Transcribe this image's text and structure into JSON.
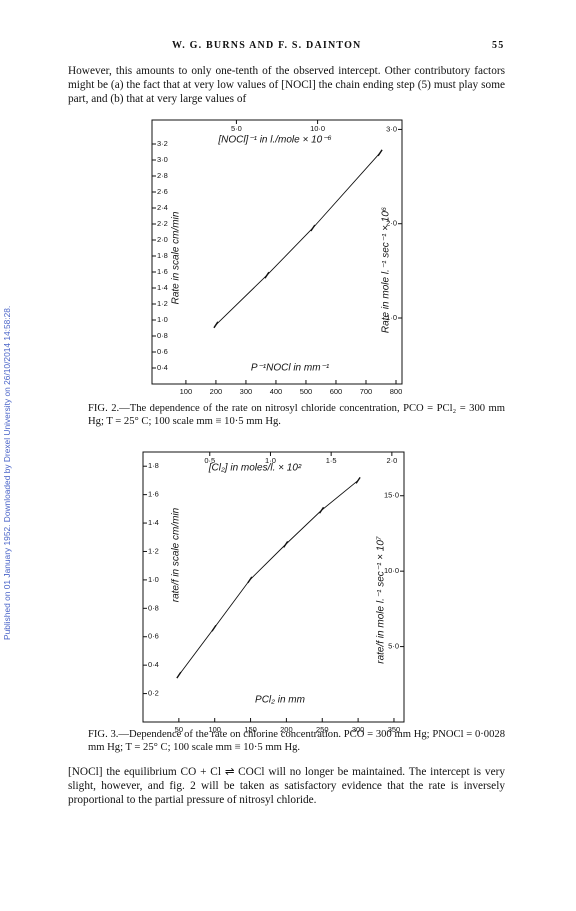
{
  "header": {
    "authors": "W. G. BURNS AND F. S. DAINTON",
    "page": "55"
  },
  "side_note": "Published on 01 January 1952. Downloaded by Drexel University on 26/10/2014 14:58:28.",
  "paragraphs": [
    "However, this amounts to only one-tenth of the observed intercept. Other contributory factors might be (a) the fact that at very low values of [NOCl] the chain ending step (5) must play some part, and (b) that at very large values of",
    "[NOCl] the equilibrium CO + Cl ⇌ COCl will no longer be maintained. The intercept is very slight, however, and fig. 2 will be taken as satisfactory evidence that the rate is inversely proportional to the partial pressure of nitrosyl chloride."
  ],
  "figures": [
    {
      "caption": "FIG. 2.—The dependence of the rate on nitrosyl chloride concentration, PCO = PCl₂ = 300 mm Hg; T = 25° C; 100 scale mm ≡ 10·5 mm Hg.",
      "x_axis": {
        "label": "P⁻¹NOCl in mm⁻¹",
        "lim": [
          -13,
          820
        ],
        "ticks": [
          100,
          200,
          300,
          400,
          500,
          600,
          700,
          800
        ]
      },
      "y_axis": {
        "label": "Rate in scale cm/min",
        "lim": [
          0.2,
          3.5
        ],
        "ticks": [
          {
            "value": 3.2,
            "label": "3·2"
          },
          {
            "value": 3.0,
            "label": "3·0"
          },
          {
            "value": 2.8,
            "label": "2·8"
          },
          {
            "value": 2.6,
            "label": "2·6"
          },
          {
            "value": 2.4,
            "label": "2·4"
          },
          {
            "value": 2.2,
            "label": "2·2"
          },
          {
            "value": 2.0,
            "label": "2·0"
          },
          {
            "value": 1.8,
            "label": "1·8"
          },
          {
            "value": 1.6,
            "label": "1·6"
          },
          {
            "value": 1.4,
            "label": "1·4"
          },
          {
            "value": 1.2,
            "label": "1·2"
          },
          {
            "value": 1.0,
            "label": "1·0"
          },
          {
            "value": 0.8,
            "label": "0·8"
          },
          {
            "value": 0.6,
            "label": "0·6"
          },
          {
            "value": 0.4,
            "label": "0·4"
          }
        ]
      },
      "x2_axis": {
        "label": "[NOCl]⁻¹ in l./mole × 10⁻⁶",
        "lim": [
          -0.2,
          15.2
        ],
        "ticks": [
          {
            "value": 5.0,
            "label": "5·0"
          },
          {
            "value": 10.0,
            "label": "10·0"
          }
        ]
      },
      "y2_axis": {
        "label": "Rate in mole l.⁻¹ sec⁻¹ × 10⁶",
        "lim": [
          0.3,
          3.1
        ],
        "ticks": [
          {
            "value": 3.0,
            "label": "3·0"
          },
          {
            "value": 2.0,
            "label": "2·0"
          },
          {
            "value": 1.0,
            "label": "1·0"
          }
        ]
      },
      "points": {
        "x": [
          200,
          370,
          523,
          747
        ],
        "y": [
          0.94,
          1.56,
          2.15,
          3.09
        ]
      }
    },
    {
      "caption": "FIG. 3.—Dependence of the rate on chlorine concentration. PCO = 300 mm Hg; PNOCl = 0·0028 mm Hg; T = 25° C; 100 scale mm ≡ 10·5 mm Hg.",
      "x_axis": {
        "label": "PCl₂ in mm",
        "lim": [
          0,
          364
        ],
        "ticks": [
          50,
          100,
          150,
          200,
          250,
          300,
          350
        ]
      },
      "y_axis": {
        "label": "rate/f in scale cm/min",
        "lim": [
          0,
          1.9
        ],
        "ticks": [
          {
            "value": 1.8,
            "label": "1·8"
          },
          {
            "value": 1.6,
            "label": "1·6"
          },
          {
            "value": 1.4,
            "label": "1·4"
          },
          {
            "value": 1.2,
            "label": "1·2"
          },
          {
            "value": 1.0,
            "label": "1·0"
          },
          {
            "value": 0.8,
            "label": "0·8"
          },
          {
            "value": 0.6,
            "label": "0·6"
          },
          {
            "value": 0.4,
            "label": "0·4"
          },
          {
            "value": 0.2,
            "label": "0·2"
          }
        ]
      },
      "x2_axis": {
        "label": "[Cl₂] in moles/l. × 10²",
        "lim": [
          -0.05,
          2.1
        ],
        "ticks": [
          {
            "value": 0.5,
            "label": "0·5"
          },
          {
            "value": 1.0,
            "label": "1·0"
          },
          {
            "value": 1.5,
            "label": "1·5"
          },
          {
            "value": 2.0,
            "label": "2·0"
          }
        ]
      },
      "y2_axis": {
        "label": "rate/f in mole l.⁻¹ sec⁻¹ × 10⁷",
        "lim": [
          0,
          17.9
        ],
        "ticks": [
          {
            "value": 15.0,
            "label": "15·0"
          },
          {
            "value": 10.0,
            "label": "10·0"
          },
          {
            "value": 5.0,
            "label": "5·0"
          }
        ]
      },
      "points": {
        "x": [
          50,
          99,
          149,
          199,
          249,
          300
        ],
        "y": [
          0.33,
          0.66,
          1.0,
          1.25,
          1.49,
          1.7
        ]
      }
    }
  ]
}
